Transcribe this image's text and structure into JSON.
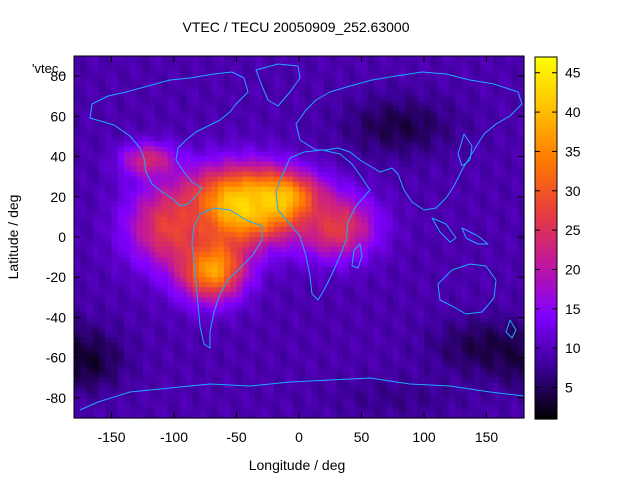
{
  "chart_data": {
    "type": "heatmap",
    "title": "VTEC / TECU 20050909_252.63000",
    "xlabel": "Longitude / deg",
    "ylabel": "Latitude / deg",
    "series_label": "'vtec_",
    "xlim": [
      -180,
      180
    ],
    "ylim": [
      -90,
      90
    ],
    "xticks": [
      -150,
      -100,
      -50,
      0,
      50,
      100,
      150
    ],
    "yticks": [
      -80,
      -60,
      -40,
      -20,
      0,
      20,
      40,
      60,
      80
    ],
    "color_range": [
      1,
      47
    ],
    "colorbar_ticks": [
      5,
      10,
      15,
      20,
      25,
      30,
      35,
      40,
      45
    ],
    "palette": [
      "#000000",
      "#3b0096",
      "#8000ff",
      "#c0179c",
      "#e73d3d",
      "#ff7a00",
      "#ffc000",
      "#ffff00"
    ],
    "grid": false,
    "background_vtec": 9,
    "peak_vtec": 45,
    "features": [
      {
        "lon": -50,
        "lat": 15,
        "peak": 45,
        "slon": 30,
        "slat": 13
      },
      {
        "lon": -15,
        "lat": 18,
        "peak": 43,
        "slon": 22,
        "slat": 9
      },
      {
        "lon": -70,
        "lat": -15,
        "peak": 40,
        "slon": 18,
        "slat": 11
      },
      {
        "lon": -100,
        "lat": 5,
        "peak": 28,
        "slon": 25,
        "slat": 14
      },
      {
        "lon": 30,
        "lat": 5,
        "peak": 27,
        "slon": 22,
        "slat": 11
      },
      {
        "lon": -120,
        "lat": 38,
        "peak": 24,
        "slon": 15,
        "slat": 6
      },
      {
        "lon": 80,
        "lat": 55,
        "peak": 4,
        "slon": 30,
        "slat": 10
      },
      {
        "lon": 150,
        "lat": -55,
        "peak": 4,
        "slon": 30,
        "slat": 10
      },
      {
        "lon": -170,
        "lat": -62,
        "peak": 3,
        "slon": 20,
        "slat": 10
      },
      {
        "lon": 80,
        "lat": -80,
        "peak": 7,
        "slon": 40,
        "slat": 8
      }
    ]
  }
}
